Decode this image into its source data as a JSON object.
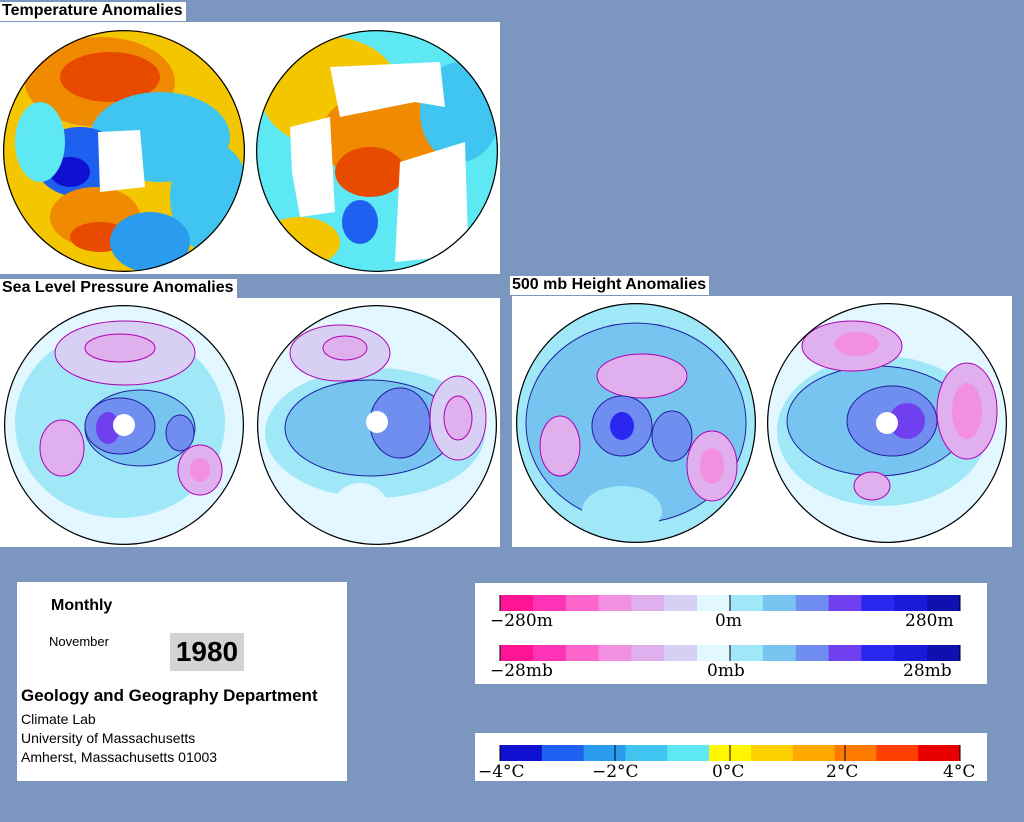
{
  "titles": {
    "temperature": "Temperature Anomalies",
    "slp": "Sea Level Pressure Anomalies",
    "height": "500 mb Height Anomalies"
  },
  "info": {
    "period": "Monthly",
    "month": "November",
    "year": "1980",
    "department": "Geology and Geography Department",
    "line1": "Climate Lab",
    "line2": "University of Massachusetts",
    "line3": "Amherst, Massachusetts 01003"
  },
  "legend_height": {
    "left": "−280m",
    "mid": "0m",
    "right": "280m"
  },
  "legend_pressure": {
    "left": "−28mb",
    "mid": "0mb",
    "right": "28mb"
  },
  "legend_temp": {
    "l1": "−4°C",
    "l2": "−2°C",
    "l3": "0°C",
    "l4": "2°C",
    "l5": "4°C"
  },
  "colors": {
    "background": "#7b96bf",
    "anomaly_scale": [
      "#ff1493",
      "#ff33b5",
      "#ff66cc",
      "#f28fe0",
      "#e0b0ee",
      "#d8d0f4",
      "#e2f7ff",
      "#a0e8f8",
      "#78c4f0",
      "#6f8ef0",
      "#7040f0",
      "#2a28f0",
      "#1a1ad8",
      "#1010b0"
    ],
    "temperature_scale": [
      "#1010d0",
      "#1e60f0",
      "#2a9cf0",
      "#40c4f0",
      "#5ee8f4",
      "#fff700",
      "#ffd000",
      "#ffa800",
      "#ff7a00",
      "#ff4000",
      "#e80000"
    ]
  }
}
